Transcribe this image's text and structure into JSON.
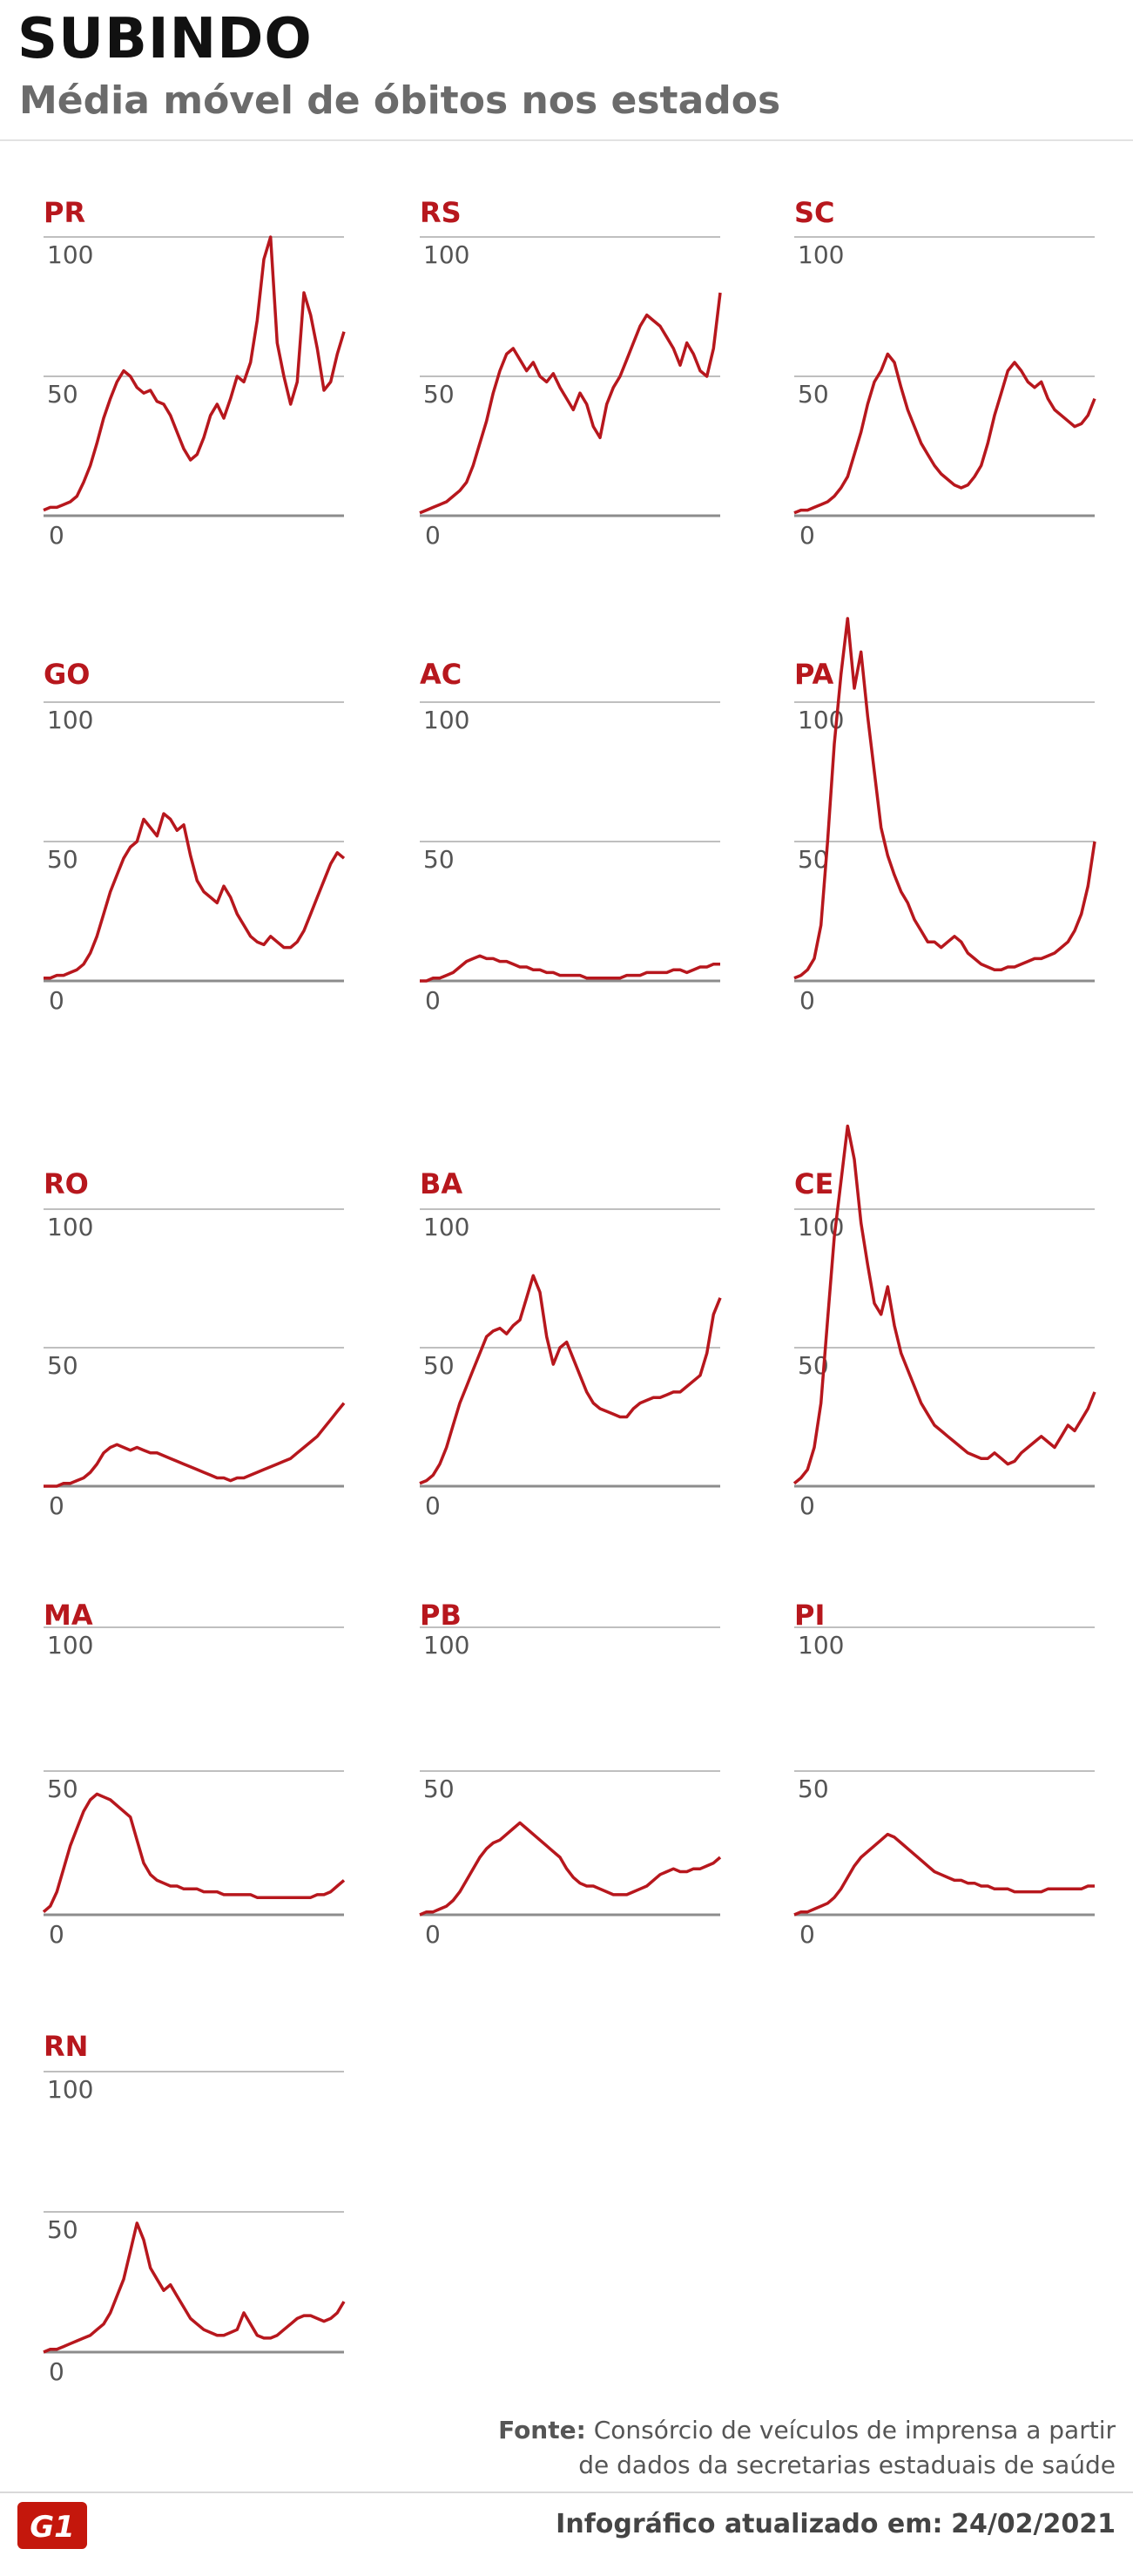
{
  "header": {
    "title": "SUBINDO",
    "subtitle": "Média móvel de óbitos nos estados"
  },
  "footer": {
    "source_label": "Fonte:",
    "source_text_line1": "Consórcio de veículos de imprensa a partir",
    "source_text_line2": "de dados da secretarias estaduais de saúde",
    "updated_label": "Infográfico atualizado em:",
    "updated_date": "24/02/2021",
    "logo_text": "G1"
  },
  "colors": {
    "line": "#b7171d",
    "label": "#b7171d",
    "grid": "#bfbfbf",
    "baseline": "#8c8c8c",
    "logo_bg": "#c4170c"
  },
  "chart_data": [
    {
      "type": "line",
      "label": "PR",
      "ylim": [
        0,
        100
      ],
      "yticks": [
        0,
        50,
        100
      ],
      "grid": true,
      "values": [
        2,
        3,
        3,
        4,
        5,
        7,
        12,
        18,
        26,
        35,
        42,
        48,
        52,
        50,
        46,
        44,
        45,
        41,
        40,
        36,
        30,
        24,
        20,
        22,
        28,
        36,
        40,
        35,
        42,
        50,
        48,
        55,
        70,
        92,
        100,
        62,
        50,
        40,
        48,
        80,
        72,
        60,
        45,
        48,
        58,
        66
      ]
    },
    {
      "type": "line",
      "label": "RS",
      "ylim": [
        0,
        100
      ],
      "yticks": [
        0,
        50,
        100
      ],
      "grid": true,
      "values": [
        1,
        2,
        3,
        4,
        5,
        7,
        9,
        12,
        18,
        26,
        34,
        44,
        52,
        58,
        60,
        56,
        52,
        55,
        50,
        48,
        51,
        46,
        42,
        38,
        44,
        40,
        32,
        28,
        40,
        46,
        50,
        56,
        62,
        68,
        72,
        70,
        68,
        64,
        60,
        54,
        62,
        58,
        52,
        50,
        60,
        80
      ]
    },
    {
      "type": "line",
      "label": "SC",
      "ylim": [
        0,
        100
      ],
      "yticks": [
        0,
        50,
        100
      ],
      "grid": true,
      "values": [
        1,
        2,
        2,
        3,
        4,
        5,
        7,
        10,
        14,
        22,
        30,
        40,
        48,
        52,
        58,
        55,
        46,
        38,
        32,
        26,
        22,
        18,
        15,
        13,
        11,
        10,
        11,
        14,
        18,
        26,
        36,
        44,
        52,
        55,
        52,
        48,
        46,
        48,
        42,
        38,
        36,
        34,
        32,
        33,
        36,
        42
      ]
    },
    {
      "type": "line",
      "label": "GO",
      "ylim": [
        0,
        100
      ],
      "yticks": [
        0,
        50,
        100
      ],
      "grid": true,
      "values": [
        1,
        1,
        2,
        2,
        3,
        4,
        6,
        10,
        16,
        24,
        32,
        38,
        44,
        48,
        50,
        58,
        55,
        52,
        60,
        58,
        54,
        56,
        45,
        36,
        32,
        30,
        28,
        34,
        30,
        24,
        20,
        16,
        14,
        13,
        16,
        14,
        12,
        12,
        14,
        18,
        24,
        30,
        36,
        42,
        46,
        44
      ]
    },
    {
      "type": "line",
      "label": "AC",
      "ylim": [
        0,
        100
      ],
      "yticks": [
        0,
        50,
        100
      ],
      "grid": true,
      "values": [
        0,
        0,
        1,
        1,
        2,
        3,
        5,
        7,
        8,
        9,
        8,
        8,
        7,
        7,
        6,
        5,
        5,
        4,
        4,
        3,
        3,
        2,
        2,
        2,
        2,
        1,
        1,
        1,
        1,
        1,
        1,
        2,
        2,
        2,
        3,
        3,
        3,
        3,
        4,
        4,
        3,
        4,
        5,
        5,
        6,
        6
      ]
    },
    {
      "type": "line",
      "label": "PA",
      "ylim": [
        0,
        100
      ],
      "yticks": [
        0,
        50,
        100
      ],
      "grid": true,
      "values": [
        1,
        2,
        4,
        8,
        20,
        50,
        85,
        110,
        130,
        105,
        118,
        95,
        75,
        55,
        45,
        38,
        32,
        28,
        22,
        18,
        14,
        14,
        12,
        14,
        16,
        14,
        10,
        8,
        6,
        5,
        4,
        4,
        5,
        5,
        6,
        7,
        8,
        8,
        9,
        10,
        12,
        14,
        18,
        24,
        34,
        50
      ]
    },
    {
      "type": "line",
      "label": "RO",
      "ylim": [
        0,
        100
      ],
      "yticks": [
        0,
        50,
        100
      ],
      "grid": true,
      "values": [
        0,
        0,
        0,
        1,
        1,
        2,
        3,
        5,
        8,
        12,
        14,
        15,
        14,
        13,
        14,
        13,
        12,
        12,
        11,
        10,
        9,
        8,
        7,
        6,
        5,
        4,
        3,
        3,
        2,
        3,
        3,
        4,
        5,
        6,
        7,
        8,
        9,
        10,
        12,
        14,
        16,
        18,
        21,
        24,
        27,
        30
      ]
    },
    {
      "type": "line",
      "label": "BA",
      "ylim": [
        0,
        100
      ],
      "yticks": [
        0,
        50,
        100
      ],
      "grid": true,
      "values": [
        1,
        2,
        4,
        8,
        14,
        22,
        30,
        36,
        42,
        48,
        54,
        56,
        57,
        55,
        58,
        60,
        68,
        76,
        70,
        54,
        44,
        50,
        52,
        46,
        40,
        34,
        30,
        28,
        27,
        26,
        25,
        25,
        28,
        30,
        31,
        32,
        32,
        33,
        34,
        34,
        36,
        38,
        40,
        48,
        62,
        68
      ]
    },
    {
      "type": "line",
      "label": "CE",
      "ylim": [
        0,
        100
      ],
      "yticks": [
        0,
        50,
        100
      ],
      "grid": true,
      "values": [
        1,
        3,
        6,
        14,
        30,
        60,
        90,
        110,
        130,
        118,
        95,
        80,
        66,
        62,
        72,
        58,
        48,
        42,
        36,
        30,
        26,
        22,
        20,
        18,
        16,
        14,
        12,
        11,
        10,
        10,
        12,
        10,
        8,
        9,
        12,
        14,
        16,
        18,
        16,
        14,
        18,
        22,
        20,
        24,
        28,
        34
      ]
    },
    {
      "type": "line",
      "label": "MA",
      "ylim": [
        0,
        100
      ],
      "yticks": [
        0,
        50,
        100
      ],
      "grid": true,
      "values": [
        1,
        3,
        8,
        16,
        24,
        30,
        36,
        40,
        42,
        41,
        40,
        38,
        36,
        34,
        26,
        18,
        14,
        12,
        11,
        10,
        10,
        9,
        9,
        9,
        8,
        8,
        8,
        7,
        7,
        7,
        7,
        7,
        6,
        6,
        6,
        6,
        6,
        6,
        6,
        6,
        6,
        7,
        7,
        8,
        10,
        12
      ]
    },
    {
      "type": "line",
      "label": "PB",
      "ylim": [
        0,
        100
      ],
      "yticks": [
        0,
        50,
        100
      ],
      "grid": true,
      "values": [
        0,
        1,
        1,
        2,
        3,
        5,
        8,
        12,
        16,
        20,
        23,
        25,
        26,
        28,
        30,
        32,
        30,
        28,
        26,
        24,
        22,
        20,
        16,
        13,
        11,
        10,
        10,
        9,
        8,
        7,
        7,
        7,
        8,
        9,
        10,
        12,
        14,
        15,
        16,
        15,
        15,
        16,
        16,
        17,
        18,
        20
      ]
    },
    {
      "type": "line",
      "label": "PI",
      "ylim": [
        0,
        100
      ],
      "yticks": [
        0,
        50,
        100
      ],
      "grid": true,
      "values": [
        0,
        1,
        1,
        2,
        3,
        4,
        6,
        9,
        13,
        17,
        20,
        22,
        24,
        26,
        28,
        27,
        25,
        23,
        21,
        19,
        17,
        15,
        14,
        13,
        12,
        12,
        11,
        11,
        10,
        10,
        9,
        9,
        9,
        8,
        8,
        8,
        8,
        8,
        9,
        9,
        9,
        9,
        9,
        9,
        10,
        10
      ]
    },
    {
      "type": "line",
      "label": "RN",
      "ylim": [
        0,
        100
      ],
      "yticks": [
        0,
        50,
        100
      ],
      "grid": true,
      "values": [
        0,
        1,
        1,
        2,
        3,
        4,
        5,
        6,
        8,
        10,
        14,
        20,
        26,
        36,
        46,
        40,
        30,
        26,
        22,
        24,
        20,
        16,
        12,
        10,
        8,
        7,
        6,
        6,
        7,
        8,
        14,
        10,
        6,
        5,
        5,
        6,
        8,
        10,
        12,
        13,
        13,
        12,
        11,
        12,
        14,
        18
      ]
    }
  ]
}
